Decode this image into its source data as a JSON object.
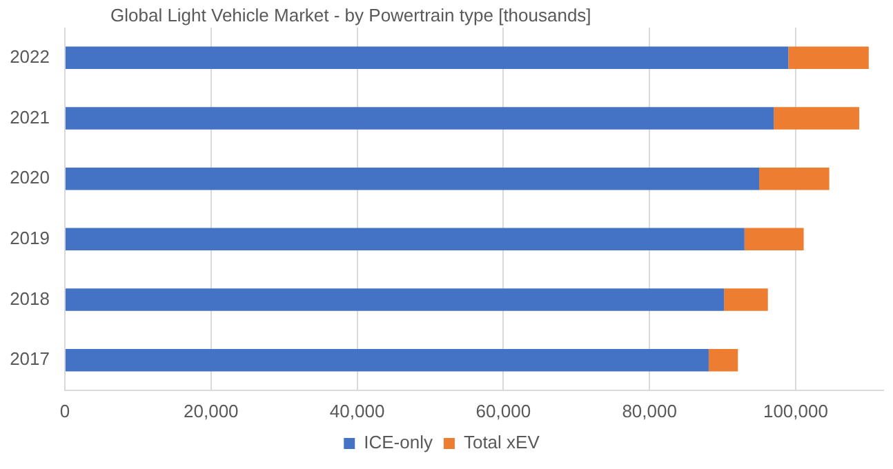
{
  "chart_data": {
    "type": "bar",
    "title": "Global Light Vehicle Market - by Powertrain type [thousands]",
    "orientation": "horizontal",
    "stacked": true,
    "categories": [
      "2022",
      "2021",
      "2020",
      "2019",
      "2018",
      "2017"
    ],
    "series": [
      {
        "name": "ICE-only",
        "color": "#4472c4",
        "values": [
          99000,
          97000,
          95000,
          93000,
          90200,
          88100
        ]
      },
      {
        "name": "Total xEV",
        "color": "#ed7d31",
        "values": [
          11000,
          11700,
          9600,
          8100,
          6000,
          4000
        ]
      }
    ],
    "xlim": [
      0,
      112000
    ],
    "xticks": [
      0,
      {
        "value": 20000,
        "label": "20,000"
      },
      {
        "value": 40000,
        "label": "40,000"
      },
      {
        "value": 60000,
        "label": "60,000"
      },
      {
        "value": 80000,
        "label": "80,000"
      },
      {
        "value": 100000,
        "label": "100,000"
      }
    ],
    "grid": "x",
    "legend": "bottom"
  }
}
